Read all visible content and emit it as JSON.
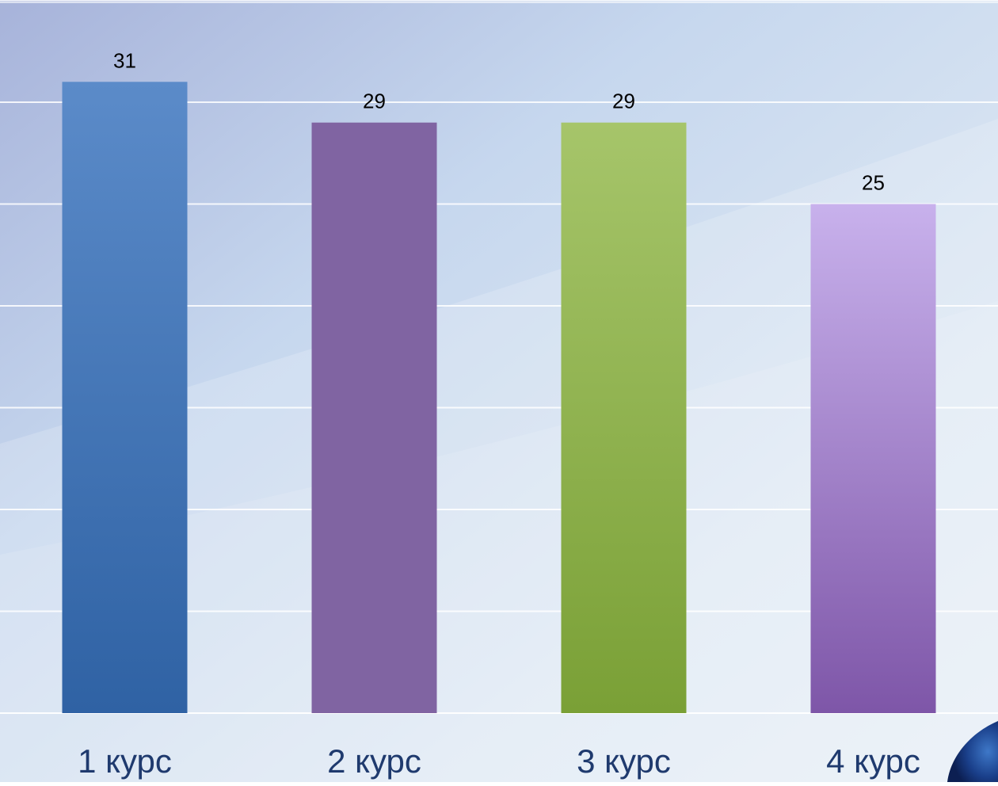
{
  "chart_data": {
    "type": "bar",
    "title": "",
    "xlabel": "",
    "ylabel": "",
    "categories": [
      "1 курс",
      "2 курс",
      "3 курс",
      "4 курс"
    ],
    "values": [
      31,
      29,
      29,
      25
    ],
    "data_labels": [
      "31",
      "29",
      "29",
      "25"
    ],
    "ylim": [
      0,
      35
    ],
    "y_tick_step": 5,
    "grid": true,
    "legend": "none",
    "bar_colors": [
      {
        "top": "#5B8BC9",
        "bottom": "#2F62A4"
      },
      {
        "top": "#8064A2",
        "bottom": "#8064A2"
      },
      {
        "top": "#A6C56A",
        "bottom": "#7AA036"
      },
      {
        "top": "#C8B1EC",
        "bottom": "#7E56A8"
      }
    ]
  },
  "colors": {
    "background_top_left": "#A9B7DC",
    "background_light": "#DCE8F4",
    "gridline": "#FFFFFF",
    "label_text": "#000000",
    "category_text": "#1F3A6E"
  }
}
